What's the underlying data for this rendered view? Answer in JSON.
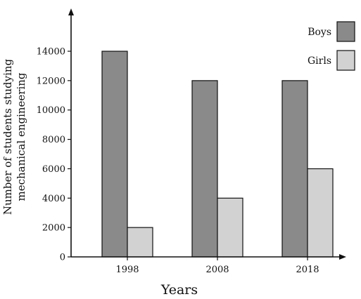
{
  "chart_data": {
    "type": "bar",
    "categories": [
      "1998",
      "2008",
      "2018"
    ],
    "series": [
      {
        "name": "Boys",
        "values": [
          14000,
          12000,
          12000
        ],
        "color": "#8a8a8a"
      },
      {
        "name": "Girls",
        "values": [
          2000,
          4000,
          6000
        ],
        "color": "#d2d2d2"
      }
    ],
    "xlabel": "Years",
    "ylabel_lines": [
      "Number of students studying",
      "mechanical engineering"
    ],
    "yticks": [
      0,
      2000,
      4000,
      6000,
      8000,
      10000,
      12000,
      14000
    ],
    "ylim": [
      0,
      16000
    ],
    "grid": false,
    "legend_position": "top-right"
  }
}
